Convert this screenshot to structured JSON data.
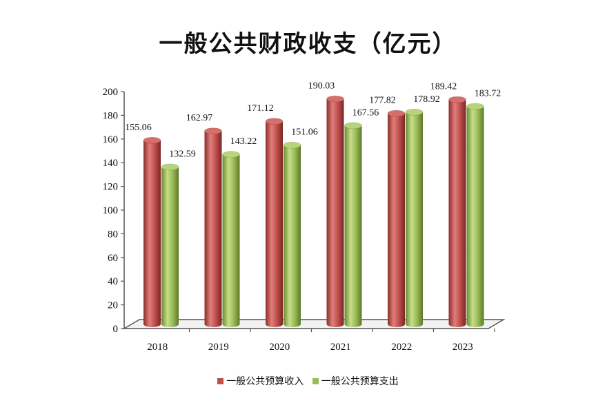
{
  "chart_data": {
    "type": "bar",
    "title": "一般公共财政收支（亿元）",
    "categories": [
      "2018",
      "2019",
      "2020",
      "2021",
      "2022",
      "2023"
    ],
    "series": [
      {
        "name": "一般公共预算收入",
        "color": "#c0504d",
        "values": [
          155.06,
          162.97,
          171.12,
          190.03,
          177.82,
          189.42
        ],
        "labels": [
          "155.06",
          "162.97",
          "171.12",
          "190.03",
          "177.82",
          "189.42"
        ]
      },
      {
        "name": "一般公共预算支出",
        "color": "#9bbb59",
        "values": [
          132.59,
          143.22,
          151.06,
          167.56,
          178.92,
          183.72
        ],
        "labels": [
          "132.59",
          "143.22",
          "151.06",
          "167.56",
          "178.92",
          "183.72"
        ]
      }
    ],
    "ylim": [
      0,
      200
    ],
    "yticks": [
      "0",
      "20",
      "40",
      "60",
      "80",
      "100",
      "120",
      "140",
      "160",
      "180",
      "200"
    ],
    "legend_position": "bottom",
    "grid": false
  }
}
